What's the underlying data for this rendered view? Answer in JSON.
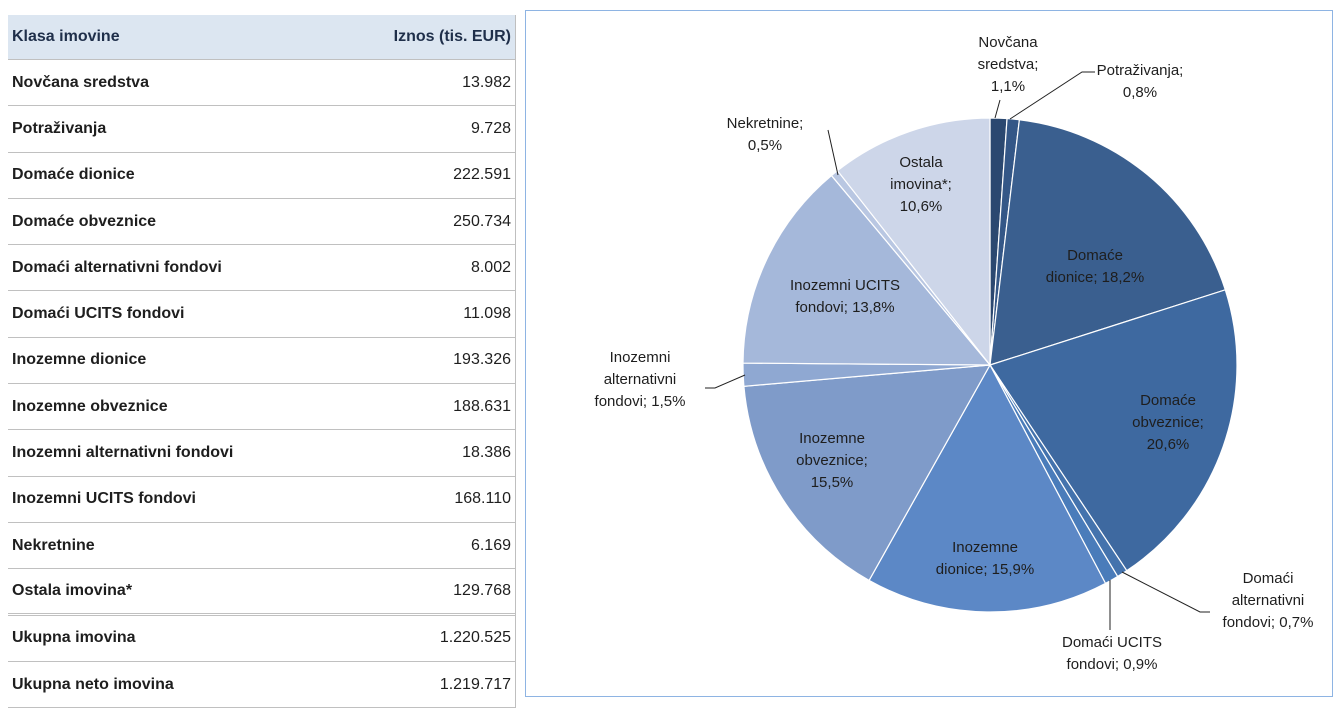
{
  "table": {
    "header": [
      "Klasa imovine",
      "Iznos (tis. EUR)"
    ],
    "rows": [
      [
        "Novčana sredstva",
        "13.982"
      ],
      [
        "Potraživanja",
        "9.728"
      ],
      [
        "Domaće dionice",
        "222.591"
      ],
      [
        "Domaće obveznice",
        "250.734"
      ],
      [
        "Domaći alternativni fondovi",
        "8.002"
      ],
      [
        "Domaći UCITS fondovi",
        "11.098"
      ],
      [
        "Inozemne dionice",
        "193.326"
      ],
      [
        "Inozemne obveznice",
        "188.631"
      ],
      [
        "Inozemni alternativni fondovi",
        "18.386"
      ],
      [
        "Inozemni UCITS fondovi",
        "168.110"
      ],
      [
        "Nekretnine",
        "6.169"
      ],
      [
        "Ostala imovina*",
        "129.768"
      ]
    ],
    "totals": [
      [
        "Ukupna imovina",
        "1.220.525"
      ],
      [
        "Ukupna neto imovina",
        "1.219.717"
      ]
    ]
  },
  "chart_data": {
    "type": "pie",
    "values": [
      1.1,
      0.8,
      18.2,
      20.6,
      0.7,
      0.9,
      15.9,
      15.5,
      1.5,
      13.8,
      0.5,
      10.6
    ],
    "value_labels": [
      "Novčana sredstva; 1,1%",
      "Potraživanja; 0,8%",
      "Domaće dionice; 18,2%",
      "Domaće obveznice; 20,6%",
      "Domaći alternativni fondovi; 0,7%",
      "Domaći UCITS fondovi; 0,9%",
      "Inozemne dionice; 15,9%",
      "Inozemne obveznice; 15,5%",
      "Inozemni alternativni fondovi; 1,5%",
      "Inozemni UCITS fondovi; 13,8%",
      "Nekretnine; 0,5%",
      "Ostala imovina*; 10,6%"
    ],
    "colors": [
      "#2b4870",
      "#345787",
      "#3a5f8f",
      "#3e69a0",
      "#4473ad",
      "#4a7cba",
      "#5c88c6",
      "#7f9bc9",
      "#8fa8d2",
      "#a5b8da",
      "#b9c7e2",
      "#cdd6e9"
    ]
  }
}
